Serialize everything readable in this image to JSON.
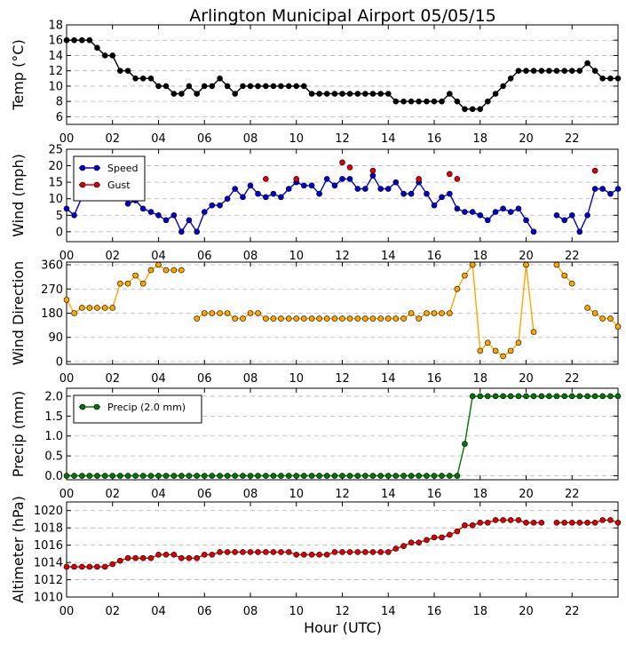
{
  "title": "Arlington Municipal Airport 05/05/15",
  "xlabel": "Hour (UTC)",
  "x_ticks": [
    "00",
    "02",
    "04",
    "06",
    "08",
    "10",
    "12",
    "14",
    "16",
    "18",
    "20",
    "22"
  ],
  "colors": {
    "temp": "#000000",
    "speed": "#0000cc",
    "gust": "#dd0000",
    "dir": "#ffa500",
    "precip": "#007700",
    "alt": "#dd0000"
  },
  "chart_data": [
    {
      "type": "line",
      "ylabel": "Temp (°C)",
      "ylim": [
        5,
        18
      ],
      "yticks": [
        6,
        8,
        10,
        12,
        14,
        16,
        18
      ],
      "grid": true,
      "series": [
        {
          "key": "temp",
          "x": [
            0,
            0.33,
            0.67,
            1,
            1.33,
            1.67,
            2,
            2.33,
            2.67,
            3,
            3.33,
            3.67,
            4,
            4.33,
            4.67,
            5,
            5.33,
            5.67,
            6,
            6.33,
            6.67,
            7,
            7.33,
            7.67,
            8,
            8.33,
            8.67,
            9,
            9.33,
            9.67,
            10,
            10.33,
            10.67,
            11,
            11.33,
            11.67,
            12,
            12.33,
            12.67,
            13,
            13.33,
            13.67,
            14,
            14.33,
            14.67,
            15,
            15.33,
            15.67,
            16,
            16.33,
            16.67,
            17,
            17.33,
            17.67,
            18,
            18.33,
            18.67,
            19,
            19.33,
            19.67,
            20,
            20.33,
            20.67,
            21,
            21.33,
            21.67,
            22,
            22.33,
            22.67,
            23,
            23.33,
            23.67,
            24
          ],
          "y": [
            16,
            16,
            16,
            16,
            15,
            14,
            14,
            12,
            12,
            11,
            11,
            11,
            10,
            10,
            9,
            9,
            10,
            9,
            10,
            10,
            11,
            10,
            9,
            10,
            10,
            10,
            10,
            10,
            10,
            10,
            10,
            10,
            9,
            9,
            9,
            9,
            9,
            9,
            9,
            9,
            9,
            9,
            9,
            8,
            8,
            8,
            8,
            8,
            8,
            8,
            9,
            8,
            7,
            7,
            7,
            8,
            9,
            10,
            11,
            12,
            12,
            12,
            12,
            12,
            12,
            12,
            12,
            12,
            13,
            12,
            11,
            11,
            11
          ]
        }
      ]
    },
    {
      "type": "line",
      "ylabel": "Wind (mph)",
      "ylim": [
        -3,
        25
      ],
      "yticks": [
        0,
        5,
        10,
        15,
        20,
        25
      ],
      "grid": true,
      "legend": {
        "placement": "top-left",
        "entries": [
          "Speed",
          "Gust"
        ]
      },
      "series": [
        {
          "key": "speed",
          "name": "Speed",
          "x": [
            0,
            0.33,
            0.67,
            1,
            1.33,
            1.67,
            2,
            2.33,
            2.67,
            3,
            3.33,
            3.67,
            4,
            4.33,
            4.67,
            5,
            5.33,
            5.67,
            6,
            6.33,
            6.67,
            7,
            7.33,
            7.67,
            8,
            8.33,
            8.67,
            9,
            9.33,
            9.67,
            10,
            10.33,
            10.67,
            11,
            11.33,
            11.67,
            12,
            12.33,
            12.67,
            13,
            13.33,
            13.67,
            14,
            14.33,
            14.67,
            15,
            15.33,
            15.67,
            16,
            16.33,
            16.67,
            17,
            17.33,
            17.67,
            18,
            18.33,
            18.67,
            19,
            19.33,
            19.67,
            20,
            20.33,
            20.67,
            null,
            21.33,
            21.67,
            22,
            22.33,
            22.67,
            23,
            23.33,
            23.67,
            24
          ],
          "y": [
            7,
            5,
            10.5,
            18,
            14,
            15,
            13,
            13,
            8.5,
            9.5,
            7,
            6,
            5,
            3.5,
            5,
            0,
            3.5,
            0,
            6,
            8,
            8,
            10,
            13,
            10.5,
            14,
            11.5,
            10.5,
            11.5,
            10.5,
            13,
            15,
            14,
            14,
            11.5,
            16,
            14,
            16,
            16,
            13,
            13,
            17,
            13,
            13,
            15,
            11.5,
            11.5,
            15,
            11.5,
            8,
            10.5,
            11.5,
            7,
            6,
            6,
            5,
            3.5,
            6,
            7,
            6,
            7,
            3.5,
            0,
            null,
            null,
            5,
            3.5,
            5,
            0,
            5,
            13,
            13,
            11.5,
            13
          ]
        },
        {
          "key": "gust",
          "name": "Gust",
          "markers_only": true,
          "x": [
            8.67,
            10,
            12,
            12.33,
            13.33,
            15.33,
            16.67,
            17
          ],
          "y": [
            16,
            16,
            21,
            19.5,
            18.5,
            16,
            17.5,
            16
          ]
        },
        {
          "key": "gust2",
          "markers_only": true,
          "x": [
            23
          ],
          "y": [
            18.5
          ]
        }
      ]
    },
    {
      "type": "line",
      "ylabel": "Wind Direction",
      "ylim": [
        -10,
        370
      ],
      "yticks": [
        0,
        90,
        180,
        270,
        360
      ],
      "grid": true,
      "series": [
        {
          "key": "dir",
          "x": [
            0,
            0.33,
            0.67,
            1,
            1.33,
            1.67,
            2,
            2.33,
            2.67,
            3,
            3.33,
            3.67,
            4,
            4.33,
            4.67,
            5,
            null,
            5.67,
            6,
            6.33,
            6.67,
            7,
            7.33,
            7.67,
            8,
            8.33,
            8.67,
            9,
            9.33,
            9.67,
            10,
            10.33,
            10.67,
            11,
            11.33,
            11.67,
            12,
            12.33,
            12.67,
            13,
            13.33,
            13.67,
            14,
            14.33,
            14.67,
            15,
            15.33,
            15.67,
            16,
            16.33,
            16.67,
            17,
            17.33,
            17.67,
            18,
            18.33,
            18.67,
            19,
            19.33,
            19.67,
            20,
            20.33,
            null,
            21.33,
            21.67,
            22,
            null,
            22.67,
            23,
            23.33,
            23.67,
            24
          ],
          "y": [
            230,
            180,
            200,
            200,
            200,
            200,
            200,
            290,
            290,
            320,
            290,
            340,
            360,
            340,
            340,
            340,
            null,
            160,
            180,
            180,
            180,
            180,
            160,
            160,
            180,
            180,
            160,
            160,
            160,
            160,
            160,
            160,
            160,
            160,
            160,
            160,
            160,
            160,
            160,
            160,
            160,
            160,
            160,
            160,
            160,
            180,
            160,
            180,
            180,
            180,
            180,
            270,
            320,
            360,
            40,
            70,
            40,
            20,
            40,
            70,
            360,
            110,
            null,
            360,
            320,
            290,
            null,
            200,
            180,
            160,
            160,
            130
          ]
        }
      ]
    },
    {
      "type": "line",
      "ylabel": "Precip (mm)",
      "ylim": [
        -0.1,
        2.2
      ],
      "yticks": [
        0.0,
        0.5,
        1.0,
        1.5,
        2.0
      ],
      "grid": true,
      "legend": {
        "placement": "top-left",
        "entries": [
          "Precip (2.0 mm)"
        ]
      },
      "series": [
        {
          "key": "precip",
          "name": "Precip (2.0 mm)",
          "x": [
            0,
            0.33,
            0.67,
            1,
            1.33,
            1.67,
            2,
            2.33,
            2.67,
            3,
            3.33,
            3.67,
            4,
            4.33,
            4.67,
            5,
            5.33,
            5.67,
            6,
            6.33,
            6.67,
            7,
            7.33,
            7.67,
            8,
            8.33,
            8.67,
            9,
            9.33,
            9.67,
            10,
            10.33,
            10.67,
            11,
            11.33,
            11.67,
            12,
            12.33,
            12.67,
            13,
            13.33,
            13.67,
            14,
            14.33,
            14.67,
            15,
            15.33,
            15.67,
            16,
            16.33,
            16.67,
            17,
            17.33,
            17.67,
            18,
            18.33,
            18.67,
            19,
            19.33,
            19.67,
            20,
            20.33,
            20.67,
            21,
            21.33,
            21.67,
            22,
            22.33,
            22.67,
            23,
            23.33,
            23.67,
            24
          ],
          "y": [
            0,
            0,
            0,
            0,
            0,
            0,
            0,
            0,
            0,
            0,
            0,
            0,
            0,
            0,
            0,
            0,
            0,
            0,
            0,
            0,
            0,
            0,
            0,
            0,
            0,
            0,
            0,
            0,
            0,
            0,
            0,
            0,
            0,
            0,
            0,
            0,
            0,
            0,
            0,
            0,
            0,
            0,
            0,
            0,
            0,
            0,
            0,
            0,
            0,
            0,
            0,
            0,
            0.8,
            2,
            2,
            2,
            2,
            2,
            2,
            2,
            2,
            2,
            2,
            2,
            2,
            2,
            2,
            2,
            2,
            2,
            2,
            2,
            2
          ]
        }
      ]
    },
    {
      "type": "line",
      "ylabel": "Altimeter (hPa)",
      "ylim": [
        1010,
        1021
      ],
      "yticks": [
        1010,
        1012,
        1014,
        1016,
        1018,
        1020
      ],
      "grid": true,
      "series": [
        {
          "key": "alt",
          "x": [
            0,
            0.33,
            0.67,
            1,
            1.33,
            1.67,
            2,
            2.33,
            2.67,
            3,
            3.33,
            3.67,
            4,
            4.33,
            4.67,
            5,
            5.33,
            5.67,
            6,
            6.33,
            6.67,
            7,
            7.33,
            7.67,
            8,
            8.33,
            8.67,
            9,
            9.33,
            9.67,
            10,
            10.33,
            10.67,
            11,
            11.33,
            11.67,
            12,
            12.33,
            12.67,
            13,
            13.33,
            13.67,
            14,
            14.33,
            14.67,
            15,
            15.33,
            15.67,
            16,
            16.33,
            16.67,
            17,
            17.33,
            17.67,
            18,
            18.33,
            18.67,
            19,
            19.33,
            19.67,
            20,
            20.33,
            20.67,
            null,
            21.33,
            21.67,
            22,
            22.33,
            22.67,
            23,
            23.33,
            23.67,
            24
          ],
          "y": [
            1013.5,
            1013.5,
            1013.5,
            1013.5,
            1013.5,
            1013.5,
            1013.8,
            1014.2,
            1014.5,
            1014.5,
            1014.5,
            1014.5,
            1014.9,
            1014.9,
            1014.9,
            1014.5,
            1014.5,
            1014.5,
            1014.9,
            1014.9,
            1015.2,
            1015.2,
            1015.2,
            1015.2,
            1015.2,
            1015.2,
            1015.2,
            1015.2,
            1015.2,
            1015.2,
            1014.9,
            1014.9,
            1014.9,
            1014.9,
            1014.9,
            1015.2,
            1015.2,
            1015.2,
            1015.2,
            1015.2,
            1015.2,
            1015.2,
            1015.2,
            1015.6,
            1015.9,
            1016.3,
            1016.3,
            1016.6,
            1016.9,
            1016.9,
            1017.2,
            1017.6,
            1018.3,
            1018.3,
            1018.6,
            1018.6,
            1018.9,
            1018.9,
            1018.9,
            1018.9,
            1018.6,
            1018.6,
            1018.6,
            null,
            1018.6,
            1018.6,
            1018.6,
            1018.6,
            1018.6,
            1018.6,
            1018.9,
            1018.9,
            1018.6
          ]
        }
      ]
    }
  ]
}
